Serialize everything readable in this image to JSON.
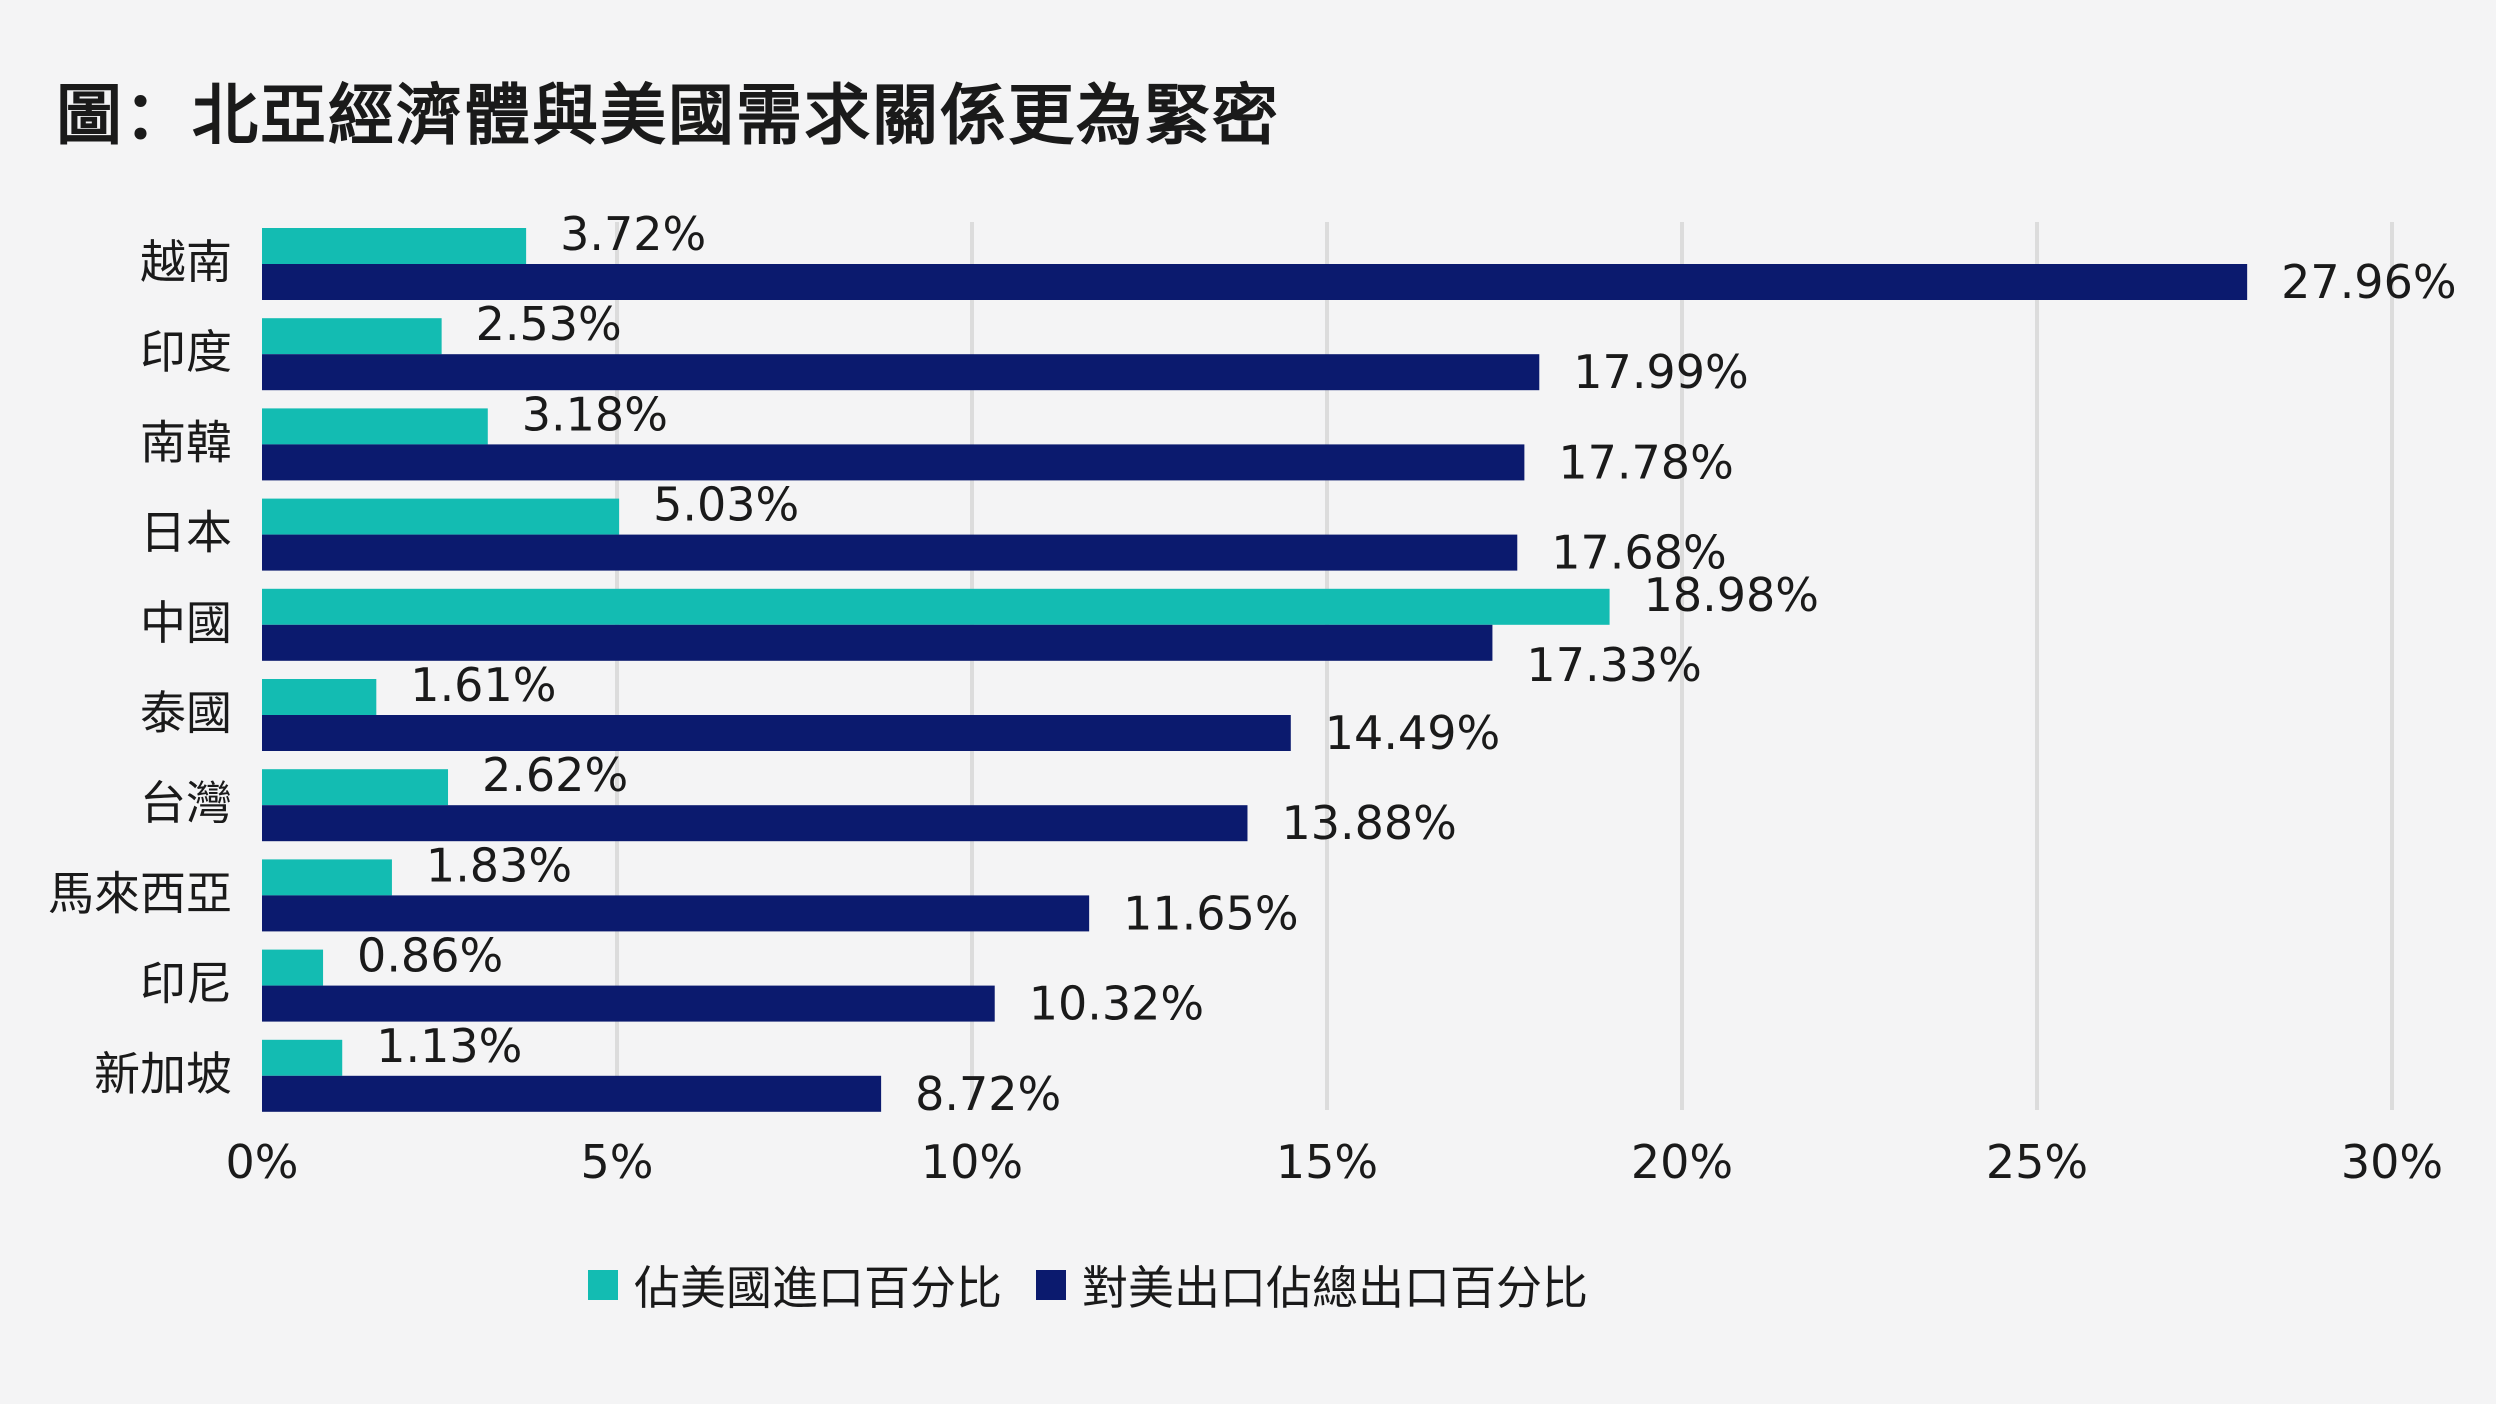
{
  "title": "圖：北亞經濟體與美國需求關係更為緊密",
  "chart_data": {
    "type": "bar",
    "orientation": "horizontal",
    "categories": [
      "越南",
      "印度",
      "南韓",
      "日本",
      "中國",
      "泰國",
      "台灣",
      "馬來西亞",
      "印尼",
      "新加坡"
    ],
    "series": [
      {
        "name": "佔美國進口百分比",
        "color": "#13bcb2",
        "values": [
          3.72,
          2.53,
          3.18,
          5.03,
          18.98,
          1.61,
          2.62,
          1.83,
          0.86,
          1.13
        ],
        "labels": [
          "3.72%",
          "2.53%",
          "3.18%",
          "5.03%",
          "18.98%",
          "1.61%",
          "2.62%",
          "1.83%",
          "0.86%",
          "1.13%"
        ]
      },
      {
        "name": "對美出口佔總出口百分比",
        "color": "#0b1a6e",
        "values": [
          27.96,
          17.99,
          17.78,
          17.68,
          17.33,
          14.49,
          13.88,
          11.65,
          10.32,
          8.72
        ],
        "labels": [
          "27.96%",
          "17.99%",
          "17.78%",
          "17.68%",
          "17.33%",
          "14.49%",
          "13.88%",
          "11.65%",
          "10.32%",
          "8.72%"
        ]
      }
    ],
    "xticks": [
      0,
      5,
      10,
      15,
      20,
      25,
      30
    ],
    "xtick_labels": [
      "0%",
      "5%",
      "10%",
      "15%",
      "20%",
      "25%",
      "30%"
    ],
    "xlim": [
      0,
      30
    ],
    "grid": "vertical",
    "legend_position": "bottom"
  }
}
